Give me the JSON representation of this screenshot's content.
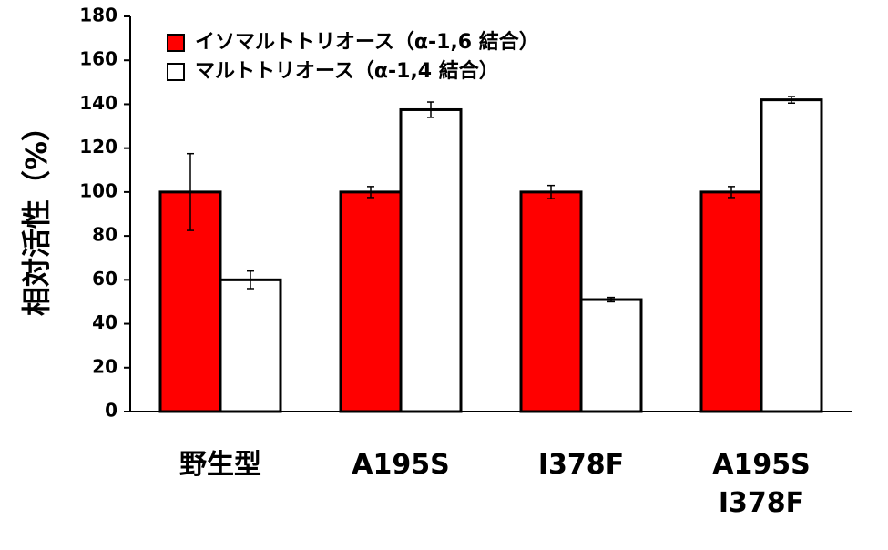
{
  "chart_data": {
    "type": "bar",
    "y_label": "相対活性（%）",
    "categories": [
      "野生型",
      "A195S",
      "I378F",
      "A195S\nI378F"
    ],
    "series": [
      {
        "name": "イソマルトトリオース（α-1,6 結合）",
        "color": "#ff0000",
        "values": [
          100,
          100,
          100,
          100
        ],
        "errors": [
          17.5,
          2.5,
          3,
          2.5
        ]
      },
      {
        "name": "マルトトリオース（α-1,4 結合）",
        "color": "#ffffff",
        "values": [
          60,
          137.5,
          51,
          142
        ],
        "errors": [
          4,
          3.5,
          1,
          1.5
        ]
      }
    ],
    "ylim": [
      0,
      180
    ],
    "yticks": [
      0,
      20,
      40,
      60,
      80,
      100,
      120,
      140,
      160,
      180
    ],
    "grid": false,
    "legend": "upper-left"
  }
}
